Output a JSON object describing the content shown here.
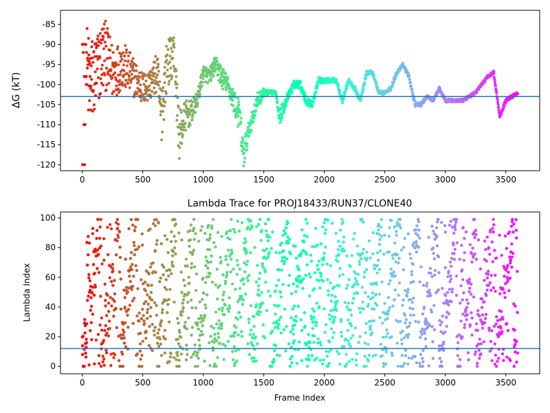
{
  "chart_data": [
    {
      "type": "scatter",
      "title": "",
      "xlabel": "",
      "ylabel": "ΔG (kT)",
      "xlim": [
        -180,
        3780
      ],
      "ylim": [
        -121.5,
        -81.5
      ],
      "xticks": [
        "0",
        "500",
        "1000",
        "1500",
        "2000",
        "2500",
        "3000",
        "3500"
      ],
      "yticks": [
        "-85",
        "-90",
        "-95",
        "-100",
        "-105",
        "-110",
        "-115",
        "-120"
      ],
      "ytick_values": [
        -85,
        -90,
        -95,
        -100,
        -105,
        -110,
        -115,
        -120
      ],
      "xtick_values": [
        0,
        500,
        1000,
        1500,
        2000,
        2500,
        3000,
        3500
      ],
      "reference_line": -103,
      "reference_line_color": "#1f77b4",
      "colormap": "rainbow (red at frame 0 to violet at last frame)",
      "frame_count": 3600,
      "series_anchors": {
        "x": [
          0,
          60,
          120,
          180,
          250,
          330,
          420,
          500,
          560,
          620,
          650,
          700,
          760,
          800,
          850,
          900,
          950,
          1000,
          1050,
          1100,
          1150,
          1200,
          1250,
          1300,
          1330,
          1380,
          1450,
          1500,
          1550,
          1600,
          1630,
          1700,
          1750,
          1800,
          1850,
          1900,
          1950,
          2000,
          2050,
          2100,
          2150,
          2200,
          2250,
          2300,
          2350,
          2400,
          2450,
          2500,
          2550,
          2600,
          2650,
          2700,
          2750,
          2800,
          2850,
          2900,
          2950,
          3000,
          3050,
          3100,
          3150,
          3200,
          3250,
          3300,
          3350,
          3400,
          3450,
          3500,
          3550,
          3600
        ],
        "y": [
          -90,
          -100,
          -97,
          -92,
          -97,
          -95,
          -98,
          -101,
          -100,
          -97,
          -108,
          -95,
          -92,
          -113,
          -108,
          -107,
          -104,
          -97,
          -98,
          -95,
          -98,
          -100,
          -104,
          -108,
          -118,
          -111,
          -104,
          -102,
          -102,
          -102,
          -108,
          -103,
          -100,
          -100,
          -104,
          -105,
          -99,
          -99,
          -99,
          -99,
          -104,
          -99,
          -101,
          -104,
          -97,
          -97,
          -102,
          -102,
          -101,
          -97,
          -95,
          -98,
          -105,
          -105,
          -103,
          -104,
          -101,
          -104,
          -104,
          -104,
          -104,
          -103,
          -102,
          -100,
          -98,
          -97,
          -108,
          -104,
          -103,
          -102
        ],
        "spread": [
          11,
          12,
          10,
          9,
          7,
          6,
          5,
          4,
          4,
          5,
          8,
          6,
          5,
          6,
          4,
          3,
          2,
          2,
          2,
          2,
          3,
          2,
          3,
          4,
          4,
          2,
          2,
          1,
          0.5,
          0.5,
          2,
          1,
          1,
          1,
          1,
          0.8,
          0.8,
          0.6,
          0.6,
          0.6,
          0.6,
          0.6,
          0.6,
          0.6,
          0.5,
          0.5,
          0.5,
          0.5,
          0.5,
          0.5,
          0.5,
          0.5,
          0.5,
          0.5,
          0.4,
          0.4,
          0.4,
          0.4,
          0.4,
          0.4,
          0.4,
          0.4,
          0.4,
          0.4,
          0.4,
          0.4,
          0.4,
          0.4,
          0.4,
          0.4
        ]
      }
    },
    {
      "type": "scatter",
      "title": "Lambda Trace for PROJ18433/RUN37/CLONE40",
      "xlabel": "Frame Index",
      "ylabel": "Lambda Index",
      "xlim": [
        -180,
        3780
      ],
      "ylim": [
        -5,
        104
      ],
      "xticks": [
        "0",
        "500",
        "1000",
        "1500",
        "2000",
        "2500",
        "3000",
        "3500"
      ],
      "yticks": [
        "0",
        "20",
        "40",
        "60",
        "80",
        "100"
      ],
      "ytick_values": [
        0,
        20,
        40,
        60,
        80,
        100
      ],
      "xtick_values": [
        0,
        500,
        1000,
        1500,
        2000,
        2500,
        3000,
        3500
      ],
      "reference_line": 12,
      "reference_line_color": "#1f77b4",
      "colormap": "rainbow (red at frame 0 to violet at last frame)",
      "frame_count": 3600,
      "sweep_period_frames": 155,
      "value_range": [
        0,
        99
      ]
    }
  ]
}
